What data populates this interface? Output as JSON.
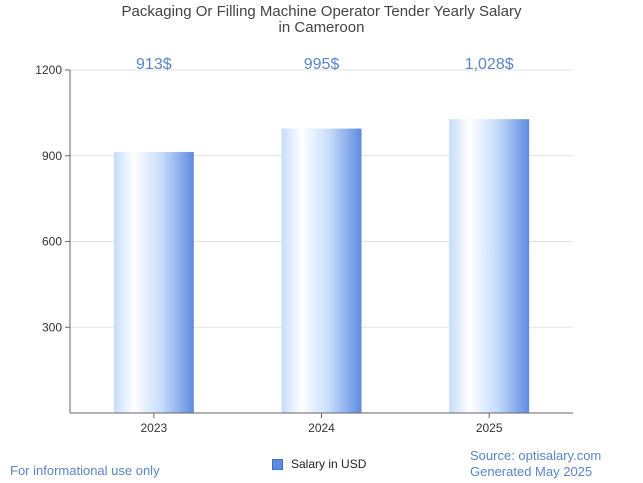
{
  "chart_data": {
    "type": "bar",
    "title_line1": "Packaging Or Filling Machine Operator Tender Yearly Salary",
    "title_line2": "in Cameroon",
    "categories": [
      "2023",
      "2024",
      "2025"
    ],
    "values": [
      913,
      995,
      1028
    ],
    "value_labels": [
      "913$",
      "995$",
      "1,028$"
    ],
    "ylim": [
      0,
      1200
    ],
    "yticks": [
      300,
      600,
      900,
      1200
    ],
    "grid": true,
    "legend": {
      "label": "Salary in USD",
      "position": "bottom-center"
    },
    "colors": {
      "bar_light": "#ffffff",
      "bar_mid": "#c5dcfb",
      "bar_dark": "#5f8be0",
      "value_label": "#5a86c7"
    }
  },
  "footer": {
    "left": "For informational use only",
    "source": "Source: optisalary.com",
    "generated": "Generated May 2025"
  }
}
